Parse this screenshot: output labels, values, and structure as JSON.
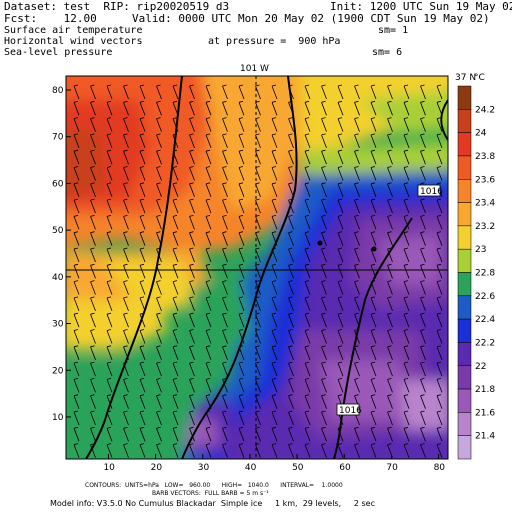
{
  "header": {
    "dataset": "Dataset: test  RIP: rip20020519 d3",
    "init": "Init: 1200 UTC Sun 19 May 02",
    "fcst": "Fcst:    12.00",
    "valid": "Valid: 0000 UTC Mon 20 May 02 (1900 CDT Sun 19 May 02)",
    "line1": "Surface air temperature",
    "line1_right": "sm= 1",
    "line2": "Horizontal wind vectors",
    "line2_mid": "at pressure =  900 hPa",
    "line3": "Sea-level pressure",
    "line3_right": "sm= 6"
  },
  "map": {
    "top_label_lon": "101 W",
    "right_label_lat": "37 N",
    "x_ticks": [
      "10",
      "20",
      "30",
      "40",
      "50",
      "60",
      "70",
      "80"
    ],
    "y_ticks": [
      "10",
      "20",
      "30",
      "40",
      "50",
      "60",
      "70",
      "80"
    ],
    "pressure_labels": [
      "1016",
      "1016"
    ],
    "colorbar_unit": "°C",
    "colorbar": [
      {
        "label": "24.2",
        "color": "#8b3a12"
      },
      {
        "label": "24",
        "color": "#c8411c"
      },
      {
        "label": "23.8",
        "color": "#e23a22"
      },
      {
        "label": "23.6",
        "color": "#f05a25"
      },
      {
        "label": "23.4",
        "color": "#f5842b"
      },
      {
        "label": "23.2",
        "color": "#f8a831"
      },
      {
        "label": "23",
        "color": "#f3d02f"
      },
      {
        "label": "22.8",
        "color": "#a9cf37"
      },
      {
        "label": "22.6",
        "color": "#2ba35a"
      },
      {
        "label": "22.4",
        "color": "#1d5cc6"
      },
      {
        "label": "22.2",
        "color": "#1a2fd6"
      },
      {
        "label": "22",
        "color": "#5a2bb0"
      },
      {
        "label": "21.8",
        "color": "#7a3aa8"
      },
      {
        "label": "21.6",
        "color": "#9a58b8"
      },
      {
        "label": "21.4",
        "color": "#b884cc"
      },
      {
        "label": "",
        "color": "#c5a8dc"
      }
    ]
  },
  "footer": {
    "contours": "CONTOURS:  UNITS=hPa   LOW=   960.00      HIGH=   1040.0      INTERVAL=    1.0000",
    "barb": "BARB VECTORS:  FULL BARB = 5 m s⁻¹",
    "model": "Model info: V3.5.0 No Cumulus Blackadar  Simple ice     1 km,  29 levels,     2 sec"
  }
}
